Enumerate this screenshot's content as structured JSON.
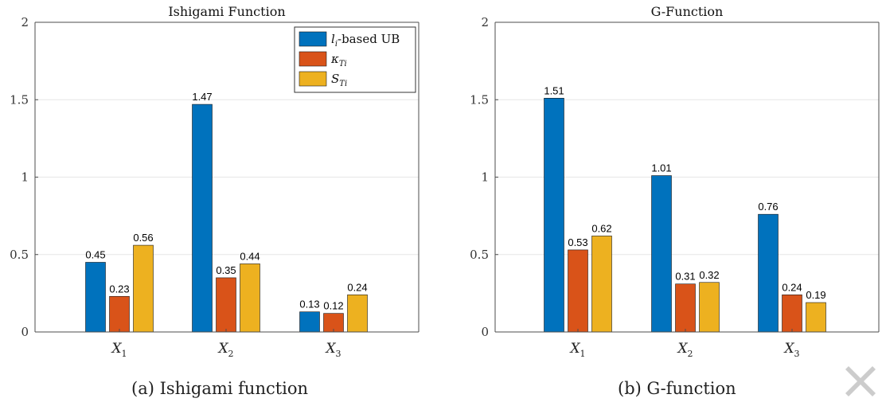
{
  "figure": {
    "captions": [
      "(a) Ishigami function",
      "(b) G-function"
    ]
  },
  "legend": {
    "entries": [
      {
        "label_main": "l",
        "label_sub": "i",
        "label_rest": "-based UB",
        "color": "#0072BD"
      },
      {
        "label_main": "κ",
        "label_sub": "Ti",
        "label_rest": "",
        "color": "#D95319"
      },
      {
        "label_main": "S",
        "label_sub": "Ti",
        "label_rest": "",
        "color": "#EDB120"
      }
    ]
  },
  "chart_data": [
    {
      "type": "bar",
      "title": "Ishigami Function",
      "categories": [
        "X1",
        "X2",
        "X3"
      ],
      "series": [
        {
          "name": "l_i-based UB",
          "values": [
            0.45,
            1.47,
            0.13
          ],
          "color": "#0072BD"
        },
        {
          "name": "κ_Ti",
          "values": [
            0.23,
            0.35,
            0.12
          ],
          "color": "#D95319"
        },
        {
          "name": "S_Ti",
          "values": [
            0.56,
            0.44,
            0.24
          ],
          "color": "#EDB120"
        }
      ],
      "ylim": [
        0,
        2
      ],
      "yticks": [
        "0",
        "0.5",
        "1",
        "1.5",
        "2"
      ],
      "grid": "horizontal",
      "legend": "top-right"
    },
    {
      "type": "bar",
      "title": "G-Function",
      "categories": [
        "X1",
        "X2",
        "X3"
      ],
      "series": [
        {
          "name": "l_i-based UB",
          "values": [
            1.51,
            1.01,
            0.76
          ],
          "color": "#0072BD"
        },
        {
          "name": "κ_Ti",
          "values": [
            0.53,
            0.31,
            0.24
          ],
          "color": "#D95319"
        },
        {
          "name": "S_Ti",
          "values": [
            0.62,
            0.32,
            0.19
          ],
          "color": "#EDB120"
        }
      ],
      "ylim": [
        0,
        2
      ],
      "yticks": [
        "0",
        "0.5",
        "1",
        "1.5",
        "2"
      ],
      "grid": "horizontal",
      "legend": "none"
    }
  ]
}
